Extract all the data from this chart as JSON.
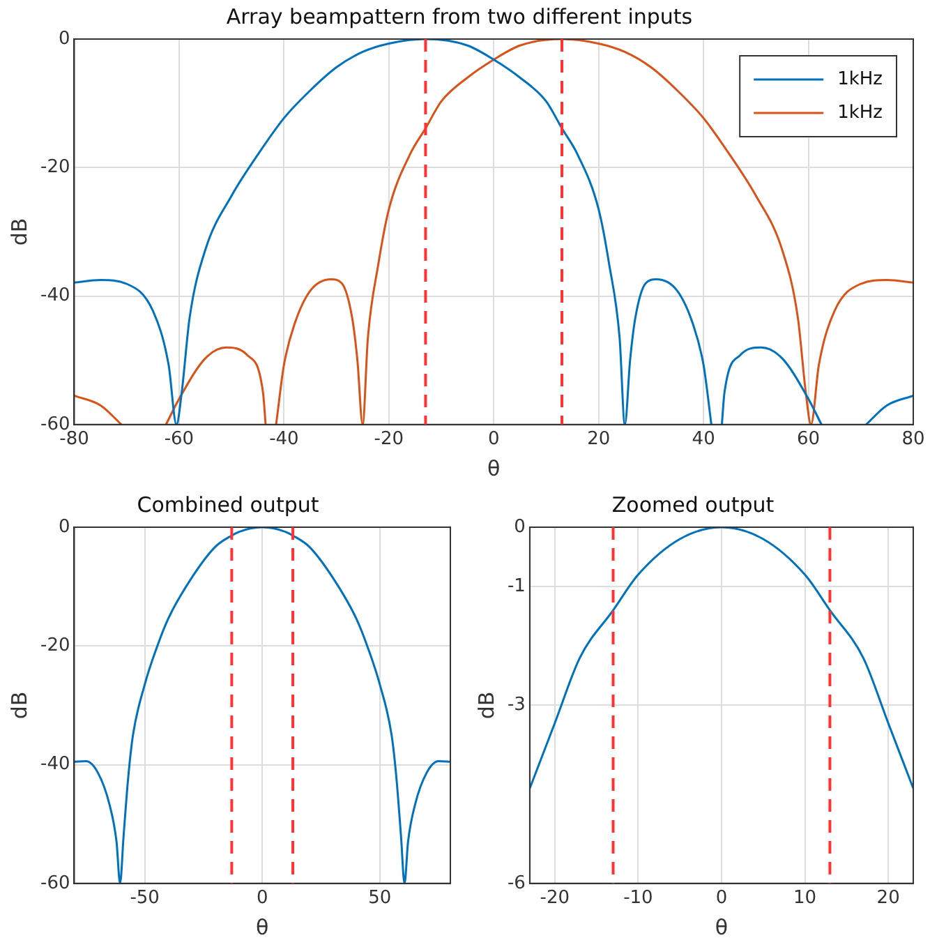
{
  "chart_data": [
    {
      "type": "line",
      "title": "Array beampattern from two different inputs",
      "xlabel": "θ",
      "ylabel": "dB",
      "xlim": [
        -80,
        80
      ],
      "xticks": [
        -80,
        -60,
        -40,
        -20,
        0,
        20,
        40,
        60,
        80
      ],
      "ylim": [
        -60,
        0
      ],
      "yticks": [
        -60,
        -40,
        -20,
        0
      ],
      "grid": true,
      "legend": "top right",
      "marker": "none",
      "ref_lines": [
        {
          "axis": "x",
          "value": -13,
          "color": "#ff3333",
          "line_style": "dashed"
        },
        {
          "axis": "x",
          "value": 13,
          "color": "#ff3333",
          "line_style": "dashed"
        }
      ],
      "series": [
        {
          "name": "1kHz",
          "color": "#0072bd",
          "x": [
            -80,
            -75,
            -70,
            -65,
            -62,
            -60.5,
            -59.5,
            -58,
            -55,
            -50,
            -45,
            -40,
            -35,
            -30,
            -25,
            -20,
            -13,
            -5,
            0,
            5,
            10,
            13,
            16,
            20,
            22,
            24,
            25,
            26,
            27,
            29,
            31,
            35,
            38,
            40,
            41.5,
            42.5,
            43.5,
            44,
            47,
            51,
            55,
            60,
            62.5,
            67,
            71,
            75,
            80
          ],
          "values": [
            -37.9,
            -37.5,
            -38.1,
            -42.3,
            -50.7,
            -60,
            -55,
            -43.4,
            -32.8,
            -24.4,
            -18,
            -12.3,
            -8,
            -4.4,
            -2,
            -0.7,
            0,
            -1,
            -3.2,
            -6,
            -9.7,
            -13.9,
            -18,
            -26.5,
            -35,
            -46.5,
            -60,
            -50,
            -43.4,
            -38,
            -37.4,
            -39.2,
            -44.4,
            -50.7,
            -60,
            null,
            -60,
            -55,
            -49.2,
            -48,
            -49.7,
            -56,
            -60,
            null,
            -60,
            -57,
            -55.5
          ]
        },
        {
          "name": "1kHz",
          "color": "#d95319",
          "x": [
            -80,
            -75,
            -71,
            -67,
            -62.5,
            -60,
            -55,
            -51,
            -47,
            -44,
            -43.5,
            -42.5,
            -41.5,
            -40,
            -38,
            -35,
            -31,
            -29,
            -27,
            -26,
            -25,
            -24,
            -22,
            -20,
            -16,
            -13,
            -10,
            -5,
            0,
            5,
            13,
            20,
            25,
            30,
            35,
            40,
            45,
            50,
            55,
            58,
            59.5,
            60.5,
            62,
            65,
            70,
            75,
            80
          ],
          "values": [
            -55.5,
            -57,
            -60,
            null,
            -60,
            -56,
            -49.7,
            -48,
            -49.2,
            -55,
            -60,
            null,
            -60,
            -50.7,
            -44.4,
            -39.2,
            -37.4,
            -38,
            -43.4,
            -50,
            -60,
            -46.5,
            -35,
            -26.5,
            -18,
            -13.9,
            -9.7,
            -6,
            -3.2,
            -1,
            0,
            -0.7,
            -2,
            -4.4,
            -8,
            -12.3,
            -18,
            -24.4,
            -32.8,
            -43.4,
            -55,
            -60,
            -50.7,
            -42.3,
            -38.1,
            -37.5,
            -37.9
          ]
        }
      ]
    },
    {
      "type": "line",
      "title": "Combined output",
      "xlabel": "θ",
      "ylabel": "dB",
      "xlim": [
        -80,
        80
      ],
      "xticks": [
        -50,
        0,
        50
      ],
      "ylim": [
        -60,
        0
      ],
      "yticks": [
        -60,
        -40,
        -20,
        0
      ],
      "grid": true,
      "marker": "none",
      "ref_lines": [
        {
          "axis": "x",
          "value": -13,
          "color": "#ff3333",
          "line_style": "dashed"
        },
        {
          "axis": "x",
          "value": 13,
          "color": "#ff3333",
          "line_style": "dashed"
        }
      ],
      "series": [
        {
          "color": "#0072bd",
          "x": [
            -80,
            -75,
            -70,
            -65,
            -62,
            -60.5,
            -59,
            -57,
            -55,
            -50,
            -45,
            -40,
            -30,
            -20,
            -13,
            -10,
            -5,
            0,
            5,
            10,
            13,
            20,
            30,
            40,
            45,
            50,
            55,
            57,
            59,
            60.5,
            62,
            65,
            70,
            75,
            80
          ],
          "values": [
            -39.5,
            -39.4,
            -41.3,
            -46.7,
            -53,
            -60,
            -52,
            -42,
            -35,
            -26.5,
            -20.4,
            -15.4,
            -8.5,
            -3.3,
            -1.4,
            -0.8,
            -0.2,
            0,
            -0.2,
            -0.8,
            -1.4,
            -3.3,
            -8.5,
            -15.4,
            -20.4,
            -26.5,
            -35,
            -42,
            -52,
            -60,
            -53,
            -46.7,
            -41.3,
            -39.4,
            -39.5
          ]
        }
      ]
    },
    {
      "type": "line",
      "title": "Zoomed output",
      "xlabel": "θ",
      "ylabel": "dB",
      "xlim": [
        -23,
        23
      ],
      "xticks": [
        -20,
        -10,
        0,
        10,
        20
      ],
      "ylim": [
        -6,
        0
      ],
      "yticks": [
        -6,
        -3,
        -1,
        0
      ],
      "grid": true,
      "marker": "none",
      "ref_lines": [
        {
          "axis": "x",
          "value": -13,
          "color": "#ff3333",
          "line_style": "dashed"
        },
        {
          "axis": "x",
          "value": 13,
          "color": "#ff3333",
          "line_style": "dashed"
        }
      ],
      "series": [
        {
          "color": "#0072bd",
          "x": [
            -23,
            -20,
            -17,
            -13,
            -10,
            -5,
            0,
            5,
            10,
            13,
            17,
            20,
            23
          ],
          "values": [
            -4.4,
            -3.3,
            -2.2,
            -1.4,
            -0.8,
            -0.2,
            0,
            -0.2,
            -0.8,
            -1.4,
            -2.2,
            -3.3,
            -4.4
          ]
        }
      ]
    }
  ]
}
